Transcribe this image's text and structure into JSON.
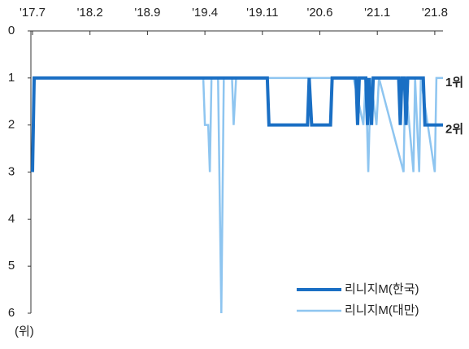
{
  "chart_data": {
    "type": "line",
    "y_label": "(위)",
    "annotations": [
      "1위",
      "2위"
    ],
    "legend": "lower right",
    "y_inverted": true,
    "xlim": [
      0,
      50
    ],
    "xticks": [
      {
        "value": 0,
        "label": "'17.7"
      },
      {
        "value": 7,
        "label": "'18.2"
      },
      {
        "value": 14,
        "label": "'18.9"
      },
      {
        "value": 21,
        "label": "'19.4"
      },
      {
        "value": 28,
        "label": "'19.11"
      },
      {
        "value": 35,
        "label": "'20.6"
      },
      {
        "value": 42,
        "label": "'21.1"
      },
      {
        "value": 49,
        "label": "'21.8"
      }
    ],
    "ylim": [
      0,
      6
    ],
    "yticks": [
      0,
      1,
      2,
      3,
      4,
      5,
      6
    ],
    "series": [
      {
        "name": "리니지M(한국)",
        "color": "#1a6fc4",
        "width": 4,
        "x": [
          0,
          0.2,
          28.6,
          28.8,
          33.5,
          33.7,
          34.0,
          36.3,
          36.5,
          39.4,
          39.6,
          39.8,
          40.6,
          40.8,
          41.0,
          41.3,
          41.5,
          44.6,
          44.8,
          45.0,
          45.3,
          45.5,
          45.7,
          47.6,
          47.8,
          50
        ],
        "values": [
          3,
          1,
          1,
          2,
          2,
          1,
          2,
          2,
          1,
          1,
          2,
          1,
          1,
          2,
          1,
          2,
          1,
          1,
          2,
          1,
          1,
          2,
          1,
          1,
          2,
          2
        ]
      },
      {
        "name": "리니지M(대만)",
        "color": "#8ec5f0",
        "width": 2.5,
        "x": [
          0,
          20.8,
          21.0,
          21.4,
          21.6,
          21.8,
          22.6,
          23.0,
          23.3,
          24.3,
          24.5,
          24.8,
          25.0,
          38.8,
          39.1,
          40.3,
          40.6,
          40.9,
          41.2,
          41.9,
          42.2,
          45.2,
          45.4,
          46.4,
          46.6,
          47.1,
          47.3,
          49.0,
          49.2,
          50
        ],
        "values": [
          1,
          1,
          2,
          2,
          3,
          1,
          1,
          6,
          1,
          1,
          2,
          1,
          1,
          1,
          1,
          2,
          1,
          3,
          1,
          2,
          1,
          3,
          1,
          3,
          1,
          3,
          1,
          3,
          1,
          1
        ]
      }
    ]
  }
}
